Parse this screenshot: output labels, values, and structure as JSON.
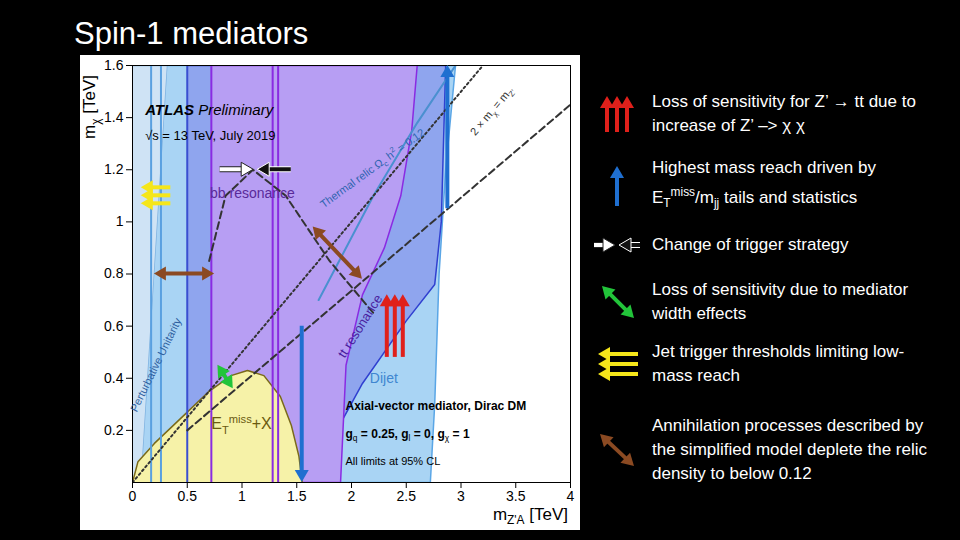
{
  "chart_data": {
    "type": "exclusion",
    "title": "Spin-1 mediators",
    "x_label": [
      "m",
      {
        "sub": "Z'A"
      },
      " [TeV]"
    ],
    "y_label": [
      "m",
      {
        "sub": "χ"
      },
      " [TeV]"
    ],
    "xlim": [
      0,
      4
    ],
    "ylim": [
      0,
      1.6
    ],
    "xticks": [
      0,
      0.5,
      1,
      1.5,
      2,
      2.5,
      3,
      3.5,
      4
    ],
    "yticks": [
      0.2,
      0.4,
      0.6,
      0.8,
      1,
      1.2,
      1.4,
      1.6
    ],
    "regions": [
      {
        "color": "#cfe3f5",
        "stroke": "#7fb2e0",
        "points": [
          [
            0,
            0
          ],
          [
            0.08,
            0
          ],
          [
            0.32,
            1.6
          ],
          [
            0,
            1.6
          ]
        ]
      },
      {
        "color": "#a9d4f4",
        "stroke": "#5aa6e6",
        "points": [
          [
            0.08,
            0
          ],
          [
            2.72,
            0
          ],
          [
            2.76,
            0.3
          ],
          [
            2.8,
            0.8
          ],
          [
            2.86,
            1.2
          ],
          [
            2.95,
            1.6
          ],
          [
            0.32,
            1.6
          ]
        ]
      },
      {
        "color": "#8fa5ee",
        "stroke": "#3040d0",
        "points": [
          [
            0.5,
            0
          ],
          [
            1.55,
            0
          ],
          [
            1.8,
            0.15
          ],
          [
            2.1,
            0.38
          ],
          [
            2.5,
            0.62
          ],
          [
            2.76,
            0.76
          ],
          [
            2.82,
            1.0
          ],
          [
            2.86,
            1.6
          ],
          [
            0.5,
            1.6
          ]
        ]
      },
      {
        "color": "#b79ef3",
        "stroke": "#8a2be2",
        "points": [
          [
            0.72,
            0
          ],
          [
            1.9,
            0
          ],
          [
            1.95,
            0.45
          ],
          [
            2.1,
            0.72
          ],
          [
            2.3,
            0.9
          ],
          [
            2.45,
            1.1
          ],
          [
            2.55,
            1.35
          ],
          [
            2.6,
            1.6
          ],
          [
            0.72,
            1.6
          ]
        ]
      },
      {
        "color": "#f6f2a8",
        "stroke": "#7a6a1a",
        "points": [
          [
            0,
            0
          ],
          [
            0.05,
            0.08
          ],
          [
            0.2,
            0.15
          ],
          [
            0.45,
            0.25
          ],
          [
            0.7,
            0.35
          ],
          [
            0.9,
            0.41
          ],
          [
            1.05,
            0.43
          ],
          [
            1.2,
            0.41
          ],
          [
            1.35,
            0.33
          ],
          [
            1.45,
            0.22
          ],
          [
            1.52,
            0.1
          ],
          [
            1.55,
            0
          ]
        ]
      }
    ],
    "curves": [
      {
        "color": "#5aa0e0",
        "line_style": "solid",
        "points": [
          [
            0.17,
            0
          ],
          [
            0.17,
            1.6
          ]
        ]
      },
      {
        "color": "#5aa0e0",
        "line_style": "solid",
        "points": [
          [
            0.26,
            0
          ],
          [
            0.26,
            1.6
          ]
        ]
      },
      {
        "color": "#3a4fd0",
        "line_style": "solid",
        "points": [
          [
            0.5,
            0
          ],
          [
            0.5,
            1.6
          ]
        ]
      },
      {
        "color": "#8a2be2",
        "line_style": "solid",
        "points": [
          [
            0.72,
            0
          ],
          [
            0.72,
            1.6
          ]
        ]
      },
      {
        "color": "#8a2be2",
        "line_style": "solid",
        "points": [
          [
            1.28,
            0
          ],
          [
            1.28,
            1.6
          ]
        ]
      },
      {
        "color": "#8a2be2",
        "line_style": "solid",
        "points": [
          [
            1.33,
            0
          ],
          [
            1.33,
            1.6
          ]
        ]
      },
      {
        "color": "#4a90d0",
        "line_style": "solid",
        "points": [
          [
            1.7,
            0.7
          ],
          [
            2.2,
            1.1
          ],
          [
            2.6,
            1.38
          ],
          [
            2.95,
            1.6
          ]
        ]
      },
      {
        "color": "#333333",
        "line_style": "dotted",
        "points": [
          [
            0,
            0
          ],
          [
            3.2,
            1.6
          ]
        ]
      },
      {
        "color": "#333333",
        "line_style": "dashed",
        "points": [
          [
            0.5,
            0.2
          ],
          [
            4,
            1.45
          ]
        ]
      },
      {
        "color": "#333333",
        "line_style": "dashed",
        "points": [
          [
            0.7,
            0.85
          ],
          [
            0.85,
            1.1
          ],
          [
            1.1,
            1.2
          ],
          [
            1.4,
            1.1
          ],
          [
            1.8,
            0.85
          ],
          [
            2.2,
            0.65
          ]
        ]
      }
    ],
    "labels": [
      {
        "text": [
          {
            "b": "ATLAS"
          },
          " Preliminary"
        ],
        "color": "#000000",
        "at": [
          0.12,
          1.43
        ]
      },
      {
        "text": [
          "√s = 13 TeV, July 2019"
        ],
        "color": "#000000",
        "at": [
          0.12,
          1.33
        ]
      },
      {
        "text": [
          "bb resonance"
        ],
        "color": "#5a2a9a",
        "at": [
          1.1,
          1.11
        ]
      },
      {
        "text": [
          "Perturbative Unitarity"
        ],
        "color": "#2f5f9f",
        "at": [
          0.22,
          0.45
        ]
      },
      {
        "text": [
          "tt resonance"
        ],
        "color": "#4a1fa0",
        "at": [
          2.08,
          0.6
        ]
      },
      {
        "text": [
          "Dijet"
        ],
        "color": "#3f86d0",
        "at": [
          2.3,
          0.4
        ]
      },
      {
        "text": [
          "E",
          {
            "sub": "T"
          },
          {
            "sup": "miss"
          },
          "+X"
        ],
        "color": "#6a5a10",
        "at": [
          1.0,
          0.22
        ]
      },
      {
        "text": [
          "Thermal relic Ω",
          {
            "sub": "c"
          },
          " h",
          {
            "sup": "2"
          },
          " = 0.12"
        ],
        "color": "#2f64b0",
        "at": [
          2.2,
          1.2
        ]
      },
      {
        "text": [
          "2 × m",
          {
            "sub": "χ"
          },
          " = m",
          {
            "sub": "Z'"
          }
        ],
        "color": "#333333",
        "at": [
          3.3,
          1.42
        ]
      },
      {
        "text": [
          {
            "b": "Axial-vector mediator, Dirac DM"
          }
        ],
        "color": "#000000",
        "at": [
          1.95,
          0.29
        ]
      },
      {
        "text": [
          {
            "b": "g"
          },
          {
            "sub": "q"
          },
          {
            "b": " = 0.25, g"
          },
          {
            "sub": "l"
          },
          {
            "b": " = 0, g"
          },
          {
            "sub": "χ"
          },
          {
            "b": " = 1"
          }
        ],
        "color": "#000000",
        "at": [
          1.95,
          0.18
        ]
      },
      {
        "text": [
          "All limits at 95% CL"
        ],
        "color": "#000000",
        "at": [
          1.95,
          0.08
        ]
      }
    ],
    "arrows": [
      {
        "style": "triple",
        "color": "#f5e61a",
        "from": [
          0.35,
          1.1
        ],
        "to": [
          0.08,
          1.1
        ]
      },
      {
        "style": "double",
        "color": "#8b4a22",
        "from": [
          0.2,
          0.8
        ],
        "to": [
          0.75,
          0.8
        ]
      },
      {
        "style": "converge",
        "color": "#ffffff",
        "from": [
          0.8,
          1.2
        ],
        "to": [
          1.45,
          1.2
        ]
      },
      {
        "style": "double",
        "color": "#8b4a22",
        "from": [
          1.65,
          0.98
        ],
        "to": [
          2.1,
          0.78
        ]
      },
      {
        "style": "triple",
        "color": "#e0201b",
        "from": [
          2.4,
          0.48
        ],
        "to": [
          2.4,
          0.72
        ]
      },
      {
        "style": "double",
        "color": "#22c43a",
        "from": [
          0.78,
          0.45
        ],
        "to": [
          0.92,
          0.36
        ]
      },
      {
        "style": "single",
        "color": "#1f6fd0",
        "from": [
          1.55,
          0.6
        ],
        "to": [
          1.55,
          0
        ]
      },
      {
        "style": "single",
        "color": "#1f6fd0",
        "from": [
          2.88,
          1.05
        ],
        "to": [
          2.88,
          1.6
        ]
      }
    ],
    "legend_items": [
      {
        "style": "triple",
        "color": "#e0201b",
        "text": [
          "Loss of sensitivity for Z’ → tt due to increase of Z’ –> χ χ"
        ]
      },
      {
        "style": "single",
        "color": "#1f6fd0",
        "text": [
          "Highest mass reach driven by E",
          {
            "sub": "T"
          },
          {
            "sup": "miss"
          },
          "/m",
          {
            "sub": "jj"
          },
          " tails and statistics"
        ]
      },
      {
        "style": "converge",
        "color": "#ffffff",
        "text": [
          "Change of trigger strategy"
        ]
      },
      {
        "style": "double",
        "color": "#22c43a",
        "text": [
          "Loss of sensitivity due to mediator width effects"
        ]
      },
      {
        "style": "triple",
        "color": "#f5e61a",
        "text": [
          "Jet trigger thresholds limiting low-mass reach"
        ]
      },
      {
        "style": "double",
        "color": "#8b4a22",
        "text": [
          "Annihilation processes described by the simplified model deplete the relic density to below 0.12"
        ]
      }
    ]
  }
}
